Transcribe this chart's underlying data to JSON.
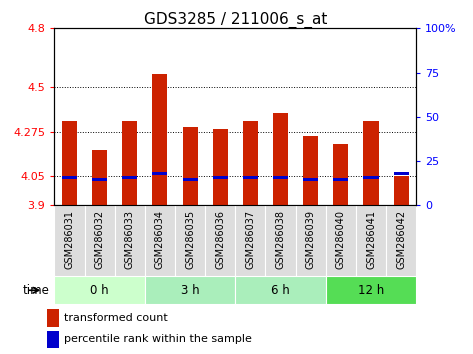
{
  "title": "GDS3285 / 211006_s_at",
  "samples": [
    "GSM286031",
    "GSM286032",
    "GSM286033",
    "GSM286034",
    "GSM286035",
    "GSM286036",
    "GSM286037",
    "GSM286038",
    "GSM286039",
    "GSM286040",
    "GSM286041",
    "GSM286042"
  ],
  "bar_values": [
    4.33,
    4.18,
    4.33,
    4.57,
    4.3,
    4.29,
    4.33,
    4.37,
    4.25,
    4.21,
    4.33,
    4.05
  ],
  "percentile_values": [
    4.04,
    4.03,
    4.04,
    4.06,
    4.03,
    4.04,
    4.04,
    4.04,
    4.03,
    4.03,
    4.04,
    4.06
  ],
  "bar_bottom": 3.9,
  "ylim_left": [
    3.9,
    4.8
  ],
  "ylim_right": [
    0,
    100
  ],
  "yticks_left": [
    3.9,
    4.05,
    4.275,
    4.5,
    4.8
  ],
  "ytick_labels_left": [
    "3.9",
    "4.05",
    "4.275",
    "4.5",
    "4.8"
  ],
  "yticks_right": [
    0,
    25,
    50,
    75,
    100
  ],
  "ytick_labels_right": [
    "0",
    "25",
    "50",
    "75",
    "100%"
  ],
  "bar_color": "#cc2200",
  "percentile_color": "#0000cc",
  "dotted_lines": [
    4.05,
    4.275,
    4.5
  ],
  "group_colors": [
    "#ccffcc",
    "#aaeebb",
    "#aaeebb",
    "#55dd55"
  ],
  "group_labels": [
    "0 h",
    "3 h",
    "6 h",
    "12 h"
  ],
  "group_ranges": [
    [
      0,
      3
    ],
    [
      3,
      6
    ],
    [
      6,
      9
    ],
    [
      9,
      12
    ]
  ],
  "time_label": "time",
  "legend_red_label": "transformed count",
  "legend_blue_label": "percentile rank within the sample",
  "title_fontsize": 11,
  "tick_fontsize": 8,
  "label_fontsize": 7,
  "bar_width": 0.5
}
